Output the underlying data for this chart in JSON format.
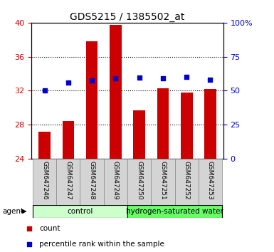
{
  "title": "GDS5215 / 1385502_at",
  "samples": [
    "GSM647246",
    "GSM647247",
    "GSM647248",
    "GSM647249",
    "GSM647250",
    "GSM647251",
    "GSM647252",
    "GSM647253"
  ],
  "bar_values": [
    27.2,
    28.4,
    37.8,
    39.7,
    29.7,
    32.3,
    31.8,
    32.2
  ],
  "dot_values": [
    50.0,
    56.0,
    57.5,
    59.0,
    59.5,
    59.0,
    60.0,
    58.0
  ],
  "ylim_left": [
    24,
    40
  ],
  "ylim_right": [
    0,
    100
  ],
  "yticks_left": [
    24,
    28,
    32,
    36,
    40
  ],
  "yticks_right": [
    0,
    25,
    50,
    75,
    100
  ],
  "ytick_labels_right": [
    "0",
    "25",
    "50",
    "75",
    "100%"
  ],
  "bar_color": "#cc0000",
  "dot_color": "#0000cc",
  "control_label": "control",
  "treatment_label": "hydrogen-saturated water",
  "agent_label": "agent",
  "legend_count": "count",
  "legend_percentile": "percentile rank within the sample",
  "control_color": "#ccffcc",
  "treatment_color": "#66ff66",
  "xlabel_color": "#cc0000",
  "ylabel_right_color": "#0000cc",
  "title_fontsize": 10,
  "tick_fontsize": 8,
  "bar_width": 0.5
}
